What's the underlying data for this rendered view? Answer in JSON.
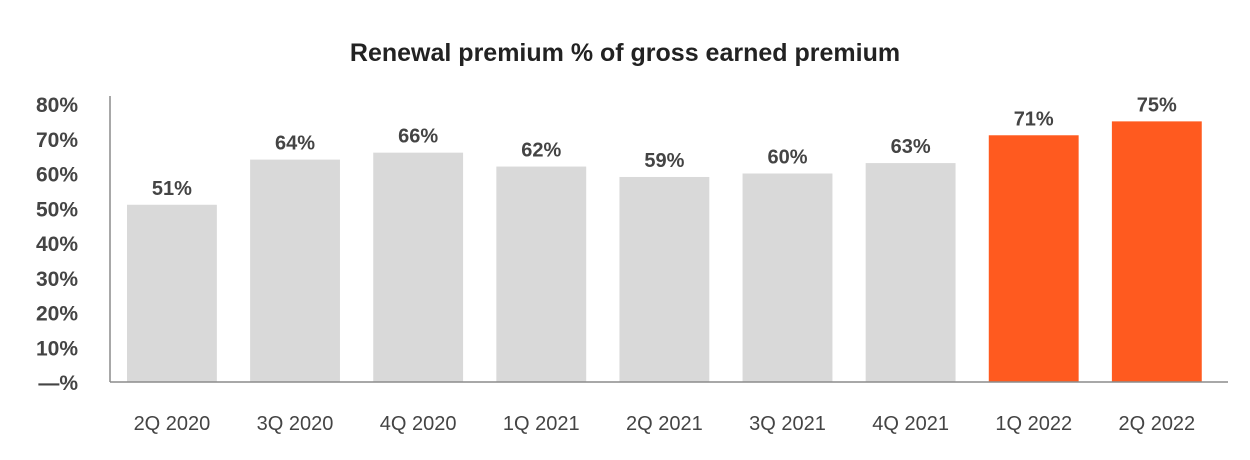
{
  "chart_data": {
    "type": "bar",
    "title": "Renewal premium % of gross earned premium",
    "xlabel": "",
    "ylabel": "",
    "categories": [
      "2Q 2020",
      "3Q 2020",
      "4Q 2020",
      "1Q 2021",
      "2Q 2021",
      "3Q 2021",
      "4Q 2021",
      "1Q 2022",
      "2Q 2022"
    ],
    "values": [
      51,
      64,
      66,
      62,
      59,
      60,
      63,
      71,
      75
    ],
    "data_labels": [
      "51%",
      "64%",
      "66%",
      "62%",
      "59%",
      "60%",
      "63%",
      "71%",
      "75%"
    ],
    "highlighted": [
      false,
      false,
      false,
      false,
      false,
      false,
      false,
      true,
      true
    ],
    "ylim": [
      0,
      80
    ],
    "yticks": [
      0,
      10,
      20,
      30,
      40,
      50,
      60,
      70,
      80
    ],
    "ytick_labels": [
      "—%",
      "10%",
      "20%",
      "30%",
      "40%",
      "50%",
      "60%",
      "70%",
      "80%"
    ],
    "grid": false,
    "colors": {
      "base": "#d9d9d9",
      "highlight": "#ff5a1f",
      "axis": "#8c8c8c"
    }
  }
}
